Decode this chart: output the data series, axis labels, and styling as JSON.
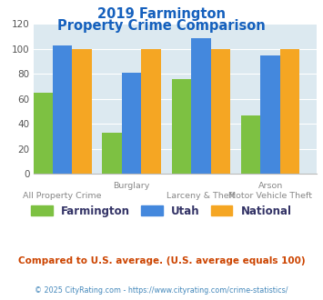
{
  "title_line1": "2019 Farmington",
  "title_line2": "Property Crime Comparison",
  "title_color": "#1560bd",
  "series": {
    "Farmington": [
      65,
      33,
      76,
      47
    ],
    "Utah": [
      103,
      81,
      109,
      95
    ],
    "National": [
      100,
      100,
      100,
      100
    ]
  },
  "colors": {
    "Farmington": "#7dc142",
    "Utah": "#4488dd",
    "National": "#f5a623"
  },
  "ylim": [
    0,
    120
  ],
  "yticks": [
    0,
    20,
    40,
    60,
    80,
    100,
    120
  ],
  "plot_bg": "#dce9f0",
  "grid_color": "#ffffff",
  "top_xlabels": [
    "",
    "Burglary",
    "",
    "Arson"
  ],
  "bot_xlabels": [
    "All Property Crime",
    "",
    "Larceny & Theft",
    "Motor Vehicle Theft"
  ],
  "footnote1": "Compared to U.S. average. (U.S. average equals 100)",
  "footnote2": "© 2025 CityRating.com - https://www.cityrating.com/crime-statistics/",
  "footnote1_color": "#cc4400",
  "footnote2_color": "#4488bb",
  "legend_label_color": "#333366",
  "xlabel_color": "#888888"
}
